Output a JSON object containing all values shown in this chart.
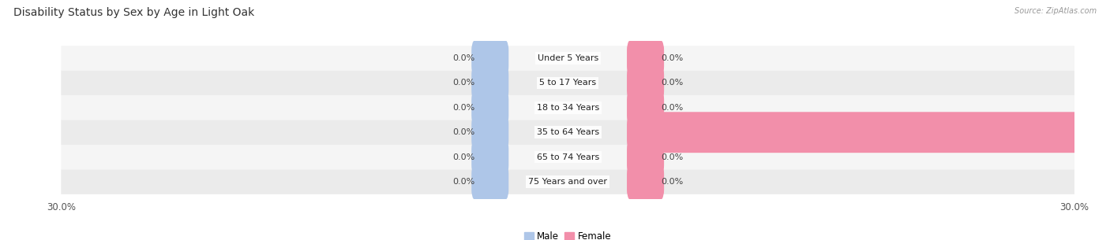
{
  "title": "Disability Status by Sex by Age in Light Oak",
  "source": "Source: ZipAtlas.com",
  "categories": [
    "Under 5 Years",
    "5 to 17 Years",
    "18 to 34 Years",
    "35 to 64 Years",
    "65 to 74 Years",
    "75 Years and over"
  ],
  "male_values": [
    0.0,
    0.0,
    0.0,
    0.0,
    0.0,
    0.0
  ],
  "female_values": [
    0.0,
    0.0,
    0.0,
    27.8,
    0.0,
    0.0
  ],
  "max_val": 30.0,
  "male_color": "#aec6e8",
  "female_color": "#f28faa",
  "row_bg_color": "#efefef",
  "row_bg_color_alt": "#e6e6e6",
  "title_fontsize": 10,
  "label_fontsize": 8,
  "value_fontsize": 8,
  "tick_fontsize": 8.5,
  "legend_male": "Male",
  "legend_female": "Female"
}
